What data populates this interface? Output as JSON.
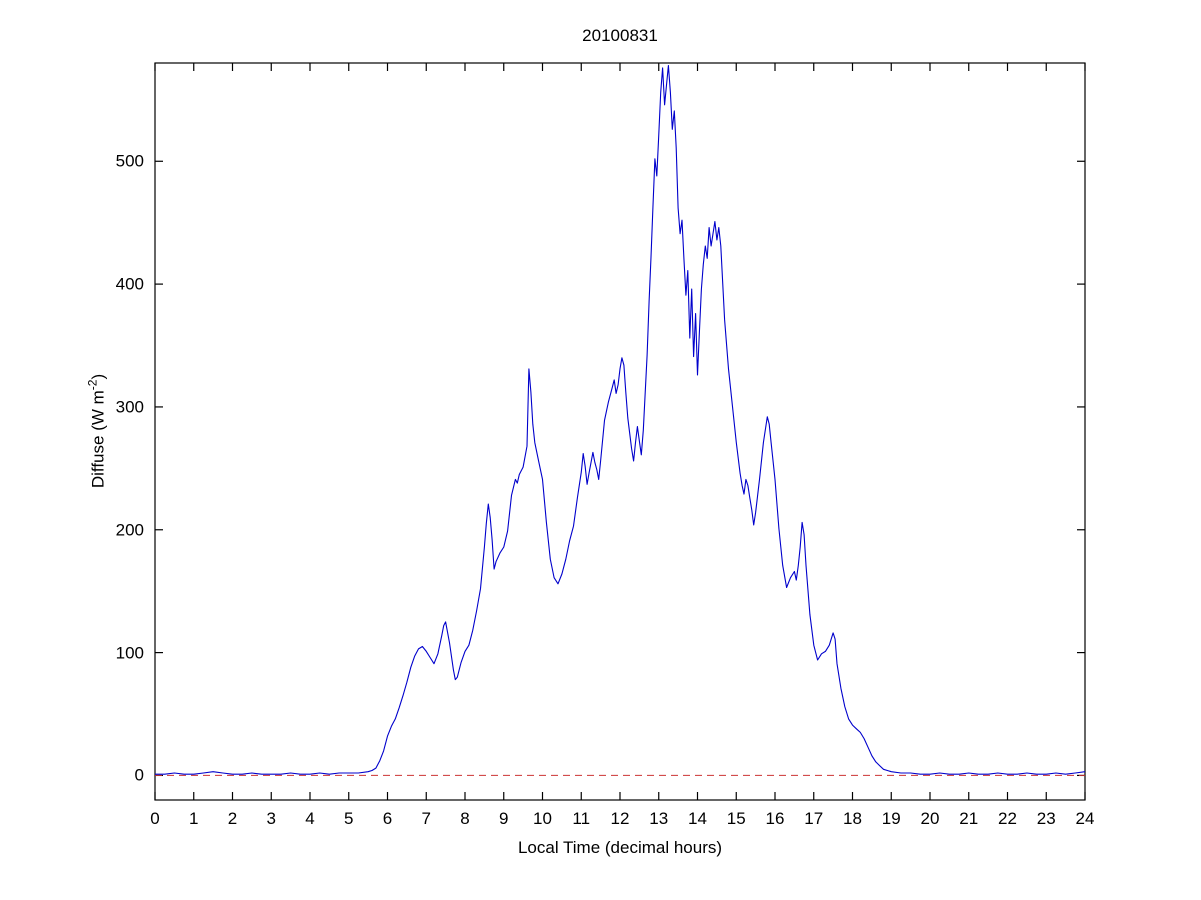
{
  "figure": {
    "title": "20100831",
    "xlabel": "Local Time (decimal hours)",
    "ylabel": {
      "prefix": "Diffuse (W m",
      "sup": "-2",
      "suffix": ")"
    }
  },
  "chart_data": {
    "type": "line",
    "title": "20100831",
    "xlabel": "Local Time (decimal hours)",
    "ylabel": "Diffuse (W m^-2)",
    "xlim": [
      0,
      24
    ],
    "ylim": [
      -20,
      580
    ],
    "x_ticks": [
      0,
      1,
      2,
      3,
      4,
      5,
      6,
      7,
      8,
      9,
      10,
      11,
      12,
      13,
      14,
      15,
      16,
      17,
      18,
      19,
      20,
      21,
      22,
      23,
      24
    ],
    "y_ticks": [
      0,
      100,
      200,
      300,
      400,
      500
    ],
    "grid": false,
    "legend": "none",
    "background": "#ffffff",
    "axis_color": "#000000",
    "zero_line": {
      "y": 0,
      "style": "dashed",
      "color": "#cc3333"
    },
    "series": [
      {
        "name": "diffuse",
        "color": "#0000cc",
        "points": [
          [
            0,
            1
          ],
          [
            0.25,
            1
          ],
          [
            0.5,
            2
          ],
          [
            0.75,
            1
          ],
          [
            1,
            1
          ],
          [
            1.25,
            2
          ],
          [
            1.5,
            3
          ],
          [
            1.75,
            2
          ],
          [
            2,
            1
          ],
          [
            2.25,
            1
          ],
          [
            2.5,
            2
          ],
          [
            2.75,
            1
          ],
          [
            3,
            1
          ],
          [
            3.25,
            1
          ],
          [
            3.5,
            2
          ],
          [
            3.75,
            1
          ],
          [
            4,
            1
          ],
          [
            4.25,
            2
          ],
          [
            4.5,
            1
          ],
          [
            4.75,
            2
          ],
          [
            5,
            2
          ],
          [
            5.25,
            2
          ],
          [
            5.5,
            3
          ],
          [
            5.6,
            4
          ],
          [
            5.7,
            6
          ],
          [
            5.8,
            12
          ],
          [
            5.9,
            20
          ],
          [
            6,
            32
          ],
          [
            6.1,
            40
          ],
          [
            6.2,
            46
          ],
          [
            6.3,
            55
          ],
          [
            6.4,
            65
          ],
          [
            6.5,
            76
          ],
          [
            6.6,
            88
          ],
          [
            6.7,
            97
          ],
          [
            6.8,
            103
          ],
          [
            6.9,
            105
          ],
          [
            7,
            101
          ],
          [
            7.1,
            96
          ],
          [
            7.2,
            91
          ],
          [
            7.3,
            99
          ],
          [
            7.4,
            114
          ],
          [
            7.45,
            122
          ],
          [
            7.5,
            125
          ],
          [
            7.6,
            108
          ],
          [
            7.7,
            86
          ],
          [
            7.75,
            78
          ],
          [
            7.8,
            80
          ],
          [
            7.9,
            92
          ],
          [
            8,
            101
          ],
          [
            8.1,
            106
          ],
          [
            8.2,
            118
          ],
          [
            8.3,
            134
          ],
          [
            8.4,
            152
          ],
          [
            8.5,
            186
          ],
          [
            8.55,
            205
          ],
          [
            8.6,
            221
          ],
          [
            8.65,
            210
          ],
          [
            8.7,
            192
          ],
          [
            8.75,
            168
          ],
          [
            8.8,
            174
          ],
          [
            8.9,
            181
          ],
          [
            9,
            186
          ],
          [
            9.1,
            199
          ],
          [
            9.2,
            228
          ],
          [
            9.3,
            241
          ],
          [
            9.35,
            238
          ],
          [
            9.4,
            245
          ],
          [
            9.5,
            251
          ],
          [
            9.6,
            268
          ],
          [
            9.65,
            331
          ],
          [
            9.7,
            312
          ],
          [
            9.75,
            286
          ],
          [
            9.8,
            271
          ],
          [
            9.9,
            256
          ],
          [
            10,
            241
          ],
          [
            10.1,
            206
          ],
          [
            10.2,
            176
          ],
          [
            10.3,
            161
          ],
          [
            10.4,
            156
          ],
          [
            10.5,
            164
          ],
          [
            10.6,
            176
          ],
          [
            10.7,
            191
          ],
          [
            10.8,
            203
          ],
          [
            10.9,
            226
          ],
          [
            11,
            247
          ],
          [
            11.05,
            262
          ],
          [
            11.1,
            252
          ],
          [
            11.15,
            237
          ],
          [
            11.2,
            246
          ],
          [
            11.3,
            263
          ],
          [
            11.35,
            255
          ],
          [
            11.4,
            249
          ],
          [
            11.45,
            241
          ],
          [
            11.5,
            256
          ],
          [
            11.6,
            289
          ],
          [
            11.7,
            304
          ],
          [
            11.8,
            316
          ],
          [
            11.85,
            322
          ],
          [
            11.9,
            311
          ],
          [
            11.95,
            318
          ],
          [
            12,
            331
          ],
          [
            12.05,
            340
          ],
          [
            12.1,
            334
          ],
          [
            12.15,
            312
          ],
          [
            12.2,
            291
          ],
          [
            12.3,
            266
          ],
          [
            12.35,
            256
          ],
          [
            12.4,
            271
          ],
          [
            12.45,
            284
          ],
          [
            12.5,
            272
          ],
          [
            12.55,
            261
          ],
          [
            12.6,
            281
          ],
          [
            12.7,
            342
          ],
          [
            12.75,
            386
          ],
          [
            12.8,
            422
          ],
          [
            12.85,
            462
          ],
          [
            12.9,
            502
          ],
          [
            12.95,
            488
          ],
          [
            13,
            522
          ],
          [
            13.05,
            556
          ],
          [
            13.1,
            576
          ],
          [
            13.15,
            546
          ],
          [
            13.2,
            562
          ],
          [
            13.25,
            578
          ],
          [
            13.3,
            556
          ],
          [
            13.35,
            526
          ],
          [
            13.4,
            541
          ],
          [
            13.45,
            511
          ],
          [
            13.5,
            462
          ],
          [
            13.55,
            441
          ],
          [
            13.6,
            452
          ],
          [
            13.65,
            421
          ],
          [
            13.7,
            391
          ],
          [
            13.75,
            411
          ],
          [
            13.8,
            356
          ],
          [
            13.85,
            396
          ],
          [
            13.9,
            341
          ],
          [
            13.95,
            376
          ],
          [
            14,
            326
          ],
          [
            14.05,
            361
          ],
          [
            14.1,
            396
          ],
          [
            14.15,
            416
          ],
          [
            14.2,
            431
          ],
          [
            14.25,
            421
          ],
          [
            14.3,
            446
          ],
          [
            14.35,
            431
          ],
          [
            14.4,
            441
          ],
          [
            14.45,
            451
          ],
          [
            14.5,
            436
          ],
          [
            14.55,
            446
          ],
          [
            14.6,
            431
          ],
          [
            14.65,
            401
          ],
          [
            14.7,
            371
          ],
          [
            14.8,
            331
          ],
          [
            14.9,
            301
          ],
          [
            15,
            271
          ],
          [
            15.1,
            246
          ],
          [
            15.15,
            236
          ],
          [
            15.2,
            229
          ],
          [
            15.25,
            241
          ],
          [
            15.3,
            236
          ],
          [
            15.35,
            226
          ],
          [
            15.4,
            216
          ],
          [
            15.45,
            204
          ],
          [
            15.5,
            214
          ],
          [
            15.6,
            241
          ],
          [
            15.7,
            271
          ],
          [
            15.8,
            292
          ],
          [
            15.85,
            286
          ],
          [
            15.9,
            271
          ],
          [
            16,
            241
          ],
          [
            16.1,
            201
          ],
          [
            16.2,
            171
          ],
          [
            16.3,
            153
          ],
          [
            16.4,
            161
          ],
          [
            16.5,
            166
          ],
          [
            16.55,
            159
          ],
          [
            16.6,
            171
          ],
          [
            16.65,
            186
          ],
          [
            16.7,
            206
          ],
          [
            16.75,
            196
          ],
          [
            16.8,
            171
          ],
          [
            16.9,
            131
          ],
          [
            17,
            106
          ],
          [
            17.1,
            94
          ],
          [
            17.2,
            99
          ],
          [
            17.3,
            101
          ],
          [
            17.4,
            106
          ],
          [
            17.5,
            116
          ],
          [
            17.55,
            111
          ],
          [
            17.6,
            91
          ],
          [
            17.7,
            71
          ],
          [
            17.8,
            56
          ],
          [
            17.9,
            46
          ],
          [
            18,
            41
          ],
          [
            18.1,
            38
          ],
          [
            18.2,
            35
          ],
          [
            18.3,
            30
          ],
          [
            18.4,
            23
          ],
          [
            18.5,
            16
          ],
          [
            18.6,
            11
          ],
          [
            18.7,
            8
          ],
          [
            18.8,
            5
          ],
          [
            18.9,
            4
          ],
          [
            19,
            3
          ],
          [
            19.25,
            2
          ],
          [
            19.5,
            2
          ],
          [
            19.75,
            1
          ],
          [
            20,
            1
          ],
          [
            20.25,
            2
          ],
          [
            20.5,
            1
          ],
          [
            20.75,
            1
          ],
          [
            21,
            2
          ],
          [
            21.25,
            1
          ],
          [
            21.5,
            1
          ],
          [
            21.75,
            2
          ],
          [
            22,
            1
          ],
          [
            22.25,
            1
          ],
          [
            22.5,
            2
          ],
          [
            22.75,
            1
          ],
          [
            23,
            1
          ],
          [
            23.25,
            2
          ],
          [
            23.5,
            1
          ],
          [
            23.75,
            2
          ],
          [
            24,
            3
          ]
        ]
      }
    ]
  }
}
